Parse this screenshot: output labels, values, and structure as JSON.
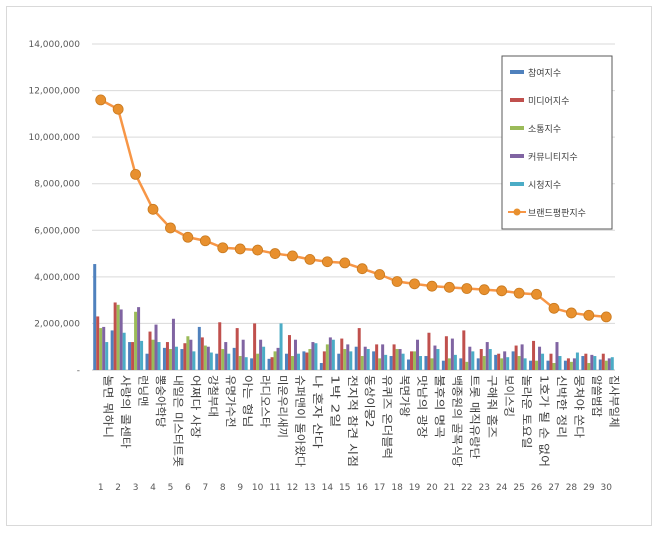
{
  "chart_data": {
    "type": "bar",
    "ylim": [
      0,
      14000000
    ],
    "yticks": [
      "-",
      "2,000,000",
      "4,000,000",
      "6,000,000",
      "8,000,000",
      "10,000,000",
      "12,000,000",
      "14,000,000"
    ],
    "numbers": [
      "1",
      "2",
      "3",
      "4",
      "5",
      "6",
      "7",
      "8",
      "9",
      "10",
      "11",
      "12",
      "13",
      "14",
      "15",
      "16",
      "17",
      "18",
      "19",
      "20",
      "21",
      "22",
      "23",
      "24",
      "25",
      "26",
      "27",
      "28",
      "29",
      "30"
    ],
    "categories": [
      "놀면 뭐하니",
      "사랑의 콜센타",
      "런닝맨",
      "뽕숭아학당",
      "내일은 미스터트롯",
      "어쩌다 사장",
      "강철부대",
      "유명가수전",
      "아는 형님",
      "라디오스타",
      "미운우리새끼",
      "슈퍼맨이 돌아왔다",
      "나 혼자 산다",
      "1박 2일",
      "전지적 참견 시점",
      "동상이몽2",
      "유퀴즈 온더블럭",
      "복면가왕",
      "맛남의 광장",
      "불후의 명곡",
      "백종원의 골목식당",
      "트롯 매직유랑단",
      "구해줘 홈즈",
      "보이스킹",
      "놀라운 토요일",
      "1호가 될 순 없어",
      "신박한 정리",
      "뭉쳐야 쏜다",
      "알쓸범잡",
      "집사부일체"
    ],
    "series": [
      {
        "name": "참여지수",
        "color": "#4f81bd",
        "values": [
          4550000,
          1700000,
          1200000,
          700000,
          950000,
          900000,
          1850000,
          700000,
          950000,
          500000,
          480000,
          700000,
          800000,
          300000,
          700000,
          1000000,
          800000,
          600000,
          450000,
          600000,
          400000,
          500000,
          500000,
          650000,
          800000,
          400000,
          400000,
          400000,
          600000,
          450000
        ]
      },
      {
        "name": "미디어지수",
        "color": "#c0504d",
        "values": [
          2300000,
          2900000,
          1200000,
          1650000,
          1200000,
          1150000,
          1400000,
          2050000,
          1800000,
          2000000,
          550000,
          1500000,
          750000,
          800000,
          1350000,
          1800000,
          1100000,
          1100000,
          800000,
          1600000,
          1450000,
          1700000,
          900000,
          700000,
          1050000,
          1250000,
          700000,
          500000,
          700000,
          700000
        ]
      },
      {
        "name": "소통지수",
        "color": "#9bbb59",
        "values": [
          1800000,
          2800000,
          2500000,
          1300000,
          900000,
          1450000,
          1050000,
          900000,
          600000,
          700000,
          800000,
          600000,
          900000,
          1100000,
          900000,
          600000,
          500000,
          900000,
          800000,
          500000,
          500000,
          350000,
          600000,
          500000,
          600000,
          400000,
          300000,
          350000,
          300000,
          400000
        ]
      },
      {
        "name": "커뮤니티지수",
        "color": "#8064a2",
        "values": [
          1850000,
          2600000,
          2700000,
          1950000,
          2200000,
          1300000,
          1000000,
          1200000,
          1300000,
          1300000,
          950000,
          1300000,
          1200000,
          1400000,
          1100000,
          1000000,
          1100000,
          900000,
          1300000,
          1050000,
          1350000,
          1000000,
          1200000,
          800000,
          1100000,
          1000000,
          1200000,
          500000,
          650000,
          500000
        ]
      },
      {
        "name": "시청지수",
        "color": "#4bacc6",
        "values": [
          1200000,
          1600000,
          1250000,
          1200000,
          1000000,
          800000,
          750000,
          700000,
          550000,
          1000000,
          2000000,
          700000,
          1150000,
          1300000,
          800000,
          900000,
          650000,
          700000,
          600000,
          900000,
          650000,
          800000,
          900000,
          550000,
          500000,
          700000,
          600000,
          750000,
          600000,
          550000
        ]
      }
    ],
    "line": {
      "name": "브랜드평판지수",
      "color": "#f79646",
      "values": [
        11600000,
        11200000,
        8400000,
        6900000,
        6100000,
        5700000,
        5550000,
        5250000,
        5200000,
        5150000,
        5000000,
        4900000,
        4750000,
        4650000,
        4600000,
        4350000,
        4100000,
        3800000,
        3700000,
        3600000,
        3550000,
        3500000,
        3450000,
        3400000,
        3300000,
        3250000,
        2650000,
        2450000,
        2350000,
        2280000
      ]
    },
    "legend_position": "top-right"
  }
}
